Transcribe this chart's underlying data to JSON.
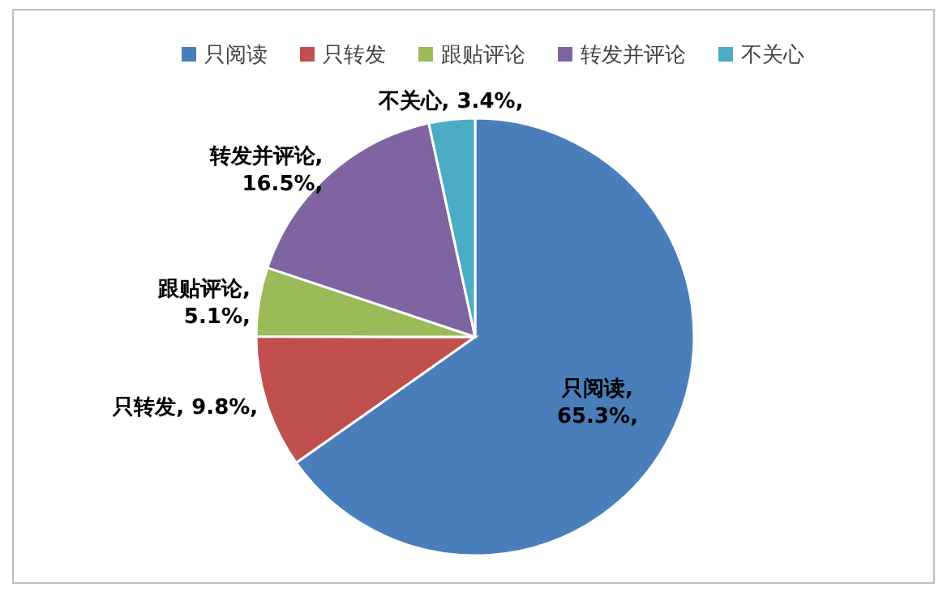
{
  "chart_data": {
    "type": "pie",
    "categories": [
      "只阅读",
      "只转发",
      "跟贴评论",
      "转发并评论",
      "不关心"
    ],
    "values": [
      65.3,
      9.8,
      5.1,
      16.5,
      3.4
    ],
    "colors": [
      "#4a7ebb",
      "#c0504d",
      "#9bbb59",
      "#8064a2",
      "#4bacc6"
    ],
    "value_labels": [
      "只阅读,\n65.3%,",
      "只转发, 9.8%,",
      "跟贴评论,\n5.1%,",
      "转发并评论,\n16.5%,",
      "不关心, 3.4%,"
    ],
    "legend": "top"
  }
}
